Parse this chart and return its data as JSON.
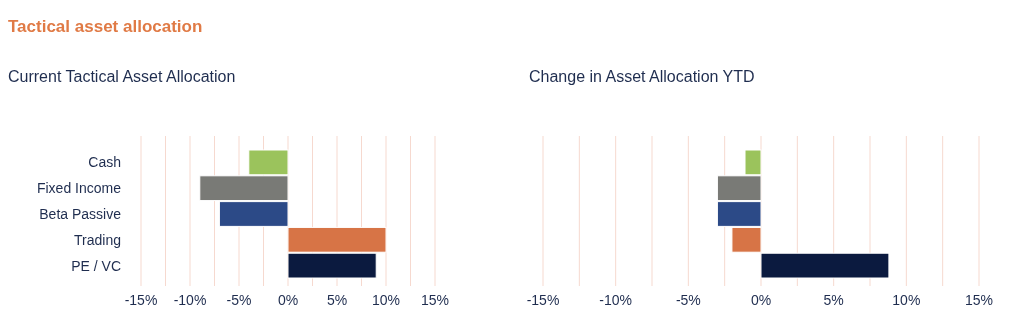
{
  "chart_data": [
    {
      "type": "bar",
      "orientation": "horizontal",
      "title": "Tactical asset allocation",
      "subtitle": "Current Tactical Asset Allocation",
      "categories": [
        "Cash",
        "Fixed Income",
        "Beta Passive",
        "Trading",
        "PE / VC"
      ],
      "values": [
        -4,
        -9,
        -7,
        10,
        9
      ],
      "colors": [
        "#9bc35c",
        "#797a76",
        "#2c4a87",
        "#d77446",
        "#0b1a3f"
      ],
      "xlim": [
        -15,
        15
      ],
      "xticks": [
        {
          "value": -15,
          "label": "-15%"
        },
        {
          "value": -12.5,
          "label": null
        },
        {
          "value": -10,
          "label": "-10%"
        },
        {
          "value": -7.5,
          "label": null
        },
        {
          "value": -5,
          "label": "-5%"
        },
        {
          "value": -2.5,
          "label": null
        },
        {
          "value": 0,
          "label": "0%"
        },
        {
          "value": 2.5,
          "label": null
        },
        {
          "value": 5,
          "label": "5%"
        },
        {
          "value": 7.5,
          "label": null
        },
        {
          "value": 10,
          "label": "10%"
        },
        {
          "value": 12.5,
          "label": null
        },
        {
          "value": 15,
          "label": "15%"
        }
      ],
      "grid": "x"
    },
    {
      "type": "bar",
      "orientation": "horizontal",
      "title": "Change in Asset Allocation YTD",
      "categories": [
        null,
        null,
        null,
        null,
        null
      ],
      "values": [
        -1.1,
        -3,
        -3,
        -2,
        8.8
      ],
      "colors": [
        "#9bc35c",
        "#797a76",
        "#2c4a87",
        "#d77446",
        "#0b1a3f"
      ],
      "xlim": [
        -15,
        15
      ],
      "xticks": [
        {
          "value": -15,
          "label": "-15%"
        },
        {
          "value": -12.5,
          "label": null
        },
        {
          "value": -10,
          "label": "-10%"
        },
        {
          "value": -7.5,
          "label": null
        },
        {
          "value": -5,
          "label": "-5%"
        },
        {
          "value": -2.5,
          "label": null
        },
        {
          "value": 0,
          "label": "0%"
        },
        {
          "value": 2.5,
          "label": null
        },
        {
          "value": 5,
          "label": "5%"
        },
        {
          "value": 7.5,
          "label": null
        },
        {
          "value": 10,
          "label": "10%"
        },
        {
          "value": 12.5,
          "label": null
        },
        {
          "value": 15,
          "label": "15%"
        }
      ],
      "grid": "x",
      "tick_labels": "x"
    }
  ]
}
